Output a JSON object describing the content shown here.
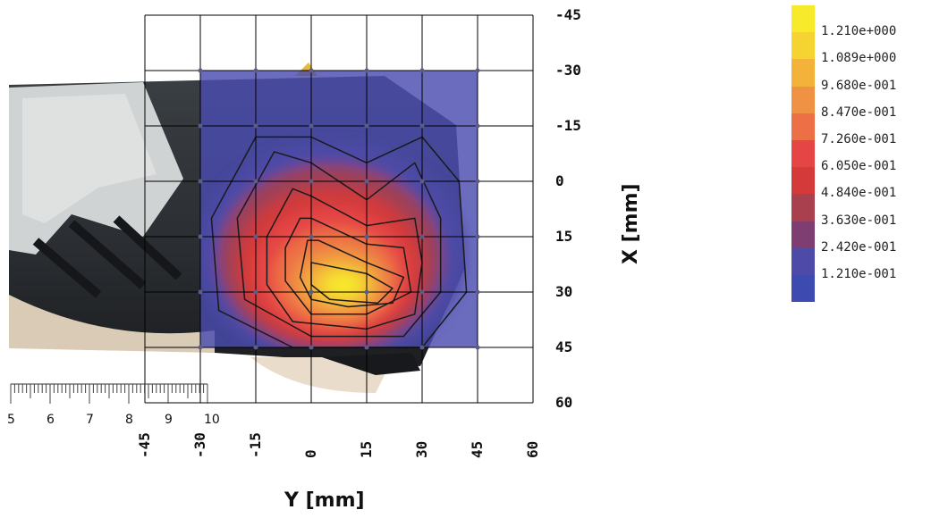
{
  "chart_data": {
    "type": "heatmap",
    "title": "",
    "xlabel": "Y [mm]",
    "ylabel": "X [mm]",
    "y_axis_horizontal": {
      "label": "Y [mm]",
      "ticks": [
        "-45",
        "-30",
        "-15",
        "0",
        "15",
        "30",
        "45",
        "60"
      ],
      "range": [
        -45,
        60
      ]
    },
    "x_axis_vertical": {
      "label": "X [mm]",
      "ticks": [
        "-45",
        "-30",
        "-15",
        "0",
        "15",
        "30",
        "45",
        "60"
      ],
      "range": [
        -45,
        60
      ],
      "inverted": true
    },
    "grid": true,
    "measurement_domain": {
      "y": [
        -30,
        45
      ],
      "x": [
        -30,
        45
      ]
    },
    "peak": {
      "y": 8,
      "x": 28,
      "value": 1.2
    },
    "colorbar": {
      "labels": [
        "1.210e+000",
        "1.089e+000",
        "9.680e-001",
        "8.470e-001",
        "7.260e-001",
        "6.050e-001",
        "4.840e-001",
        "3.630e-001",
        "2.420e-001",
        "1.210e-001"
      ],
      "levels": [
        1.21,
        1.089,
        0.968,
        0.847,
        0.726,
        0.605,
        0.484,
        0.363,
        0.242,
        0.121
      ],
      "colors": [
        "#f7ea2b",
        "#f5d431",
        "#f3b33a",
        "#f09243",
        "#ed6f45",
        "#e54545",
        "#d43a3a",
        "#a8404e",
        "#7e3e72",
        "#4d4aa8",
        "#3d4bb0"
      ]
    }
  },
  "ruler": {
    "labels": [
      "5",
      "6",
      "7",
      "8",
      "9",
      "10"
    ]
  }
}
